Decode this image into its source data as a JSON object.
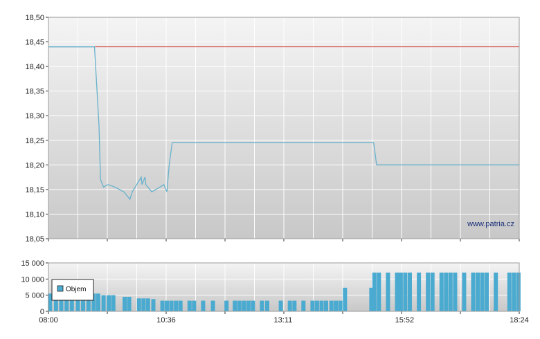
{
  "watermark": "www.patria.cz",
  "colors": {
    "price_line": "#66b2cc",
    "reference_line": "#d44040",
    "volume_bar": "#4aaad0",
    "grid": "#ffffff",
    "plot_bg_top": "#f4f4f4",
    "plot_bg_bottom": "#c8c8c8"
  },
  "chart_data": [
    {
      "type": "line",
      "title": "",
      "xlabel": "",
      "ylabel": "",
      "xlim": [
        "08:00",
        "18:24"
      ],
      "ylim": [
        18.05,
        18.5
      ],
      "y_ticks": [
        "18,05",
        "18,10",
        "18,15",
        "18,20",
        "18,25",
        "18,30",
        "18,35",
        "18,40",
        "18,45",
        "18,50"
      ],
      "grid": true,
      "reference_line": {
        "value": 18.44
      },
      "series": [
        {
          "points": [
            [
              "08:00",
              18.44
            ],
            [
              "09:01",
              18.44
            ],
            [
              "09:07",
              18.28
            ],
            [
              "09:09",
              18.17
            ],
            [
              "09:13",
              18.155
            ],
            [
              "09:19",
              18.16
            ],
            [
              "09:28",
              18.155
            ],
            [
              "09:40",
              18.145
            ],
            [
              "09:48",
              18.13
            ],
            [
              "09:51",
              18.145
            ],
            [
              "10:03",
              18.175
            ],
            [
              "10:04",
              18.16
            ],
            [
              "10:08",
              18.175
            ],
            [
              "10:09",
              18.16
            ],
            [
              "10:17",
              18.145
            ],
            [
              "10:33",
              18.16
            ],
            [
              "10:37",
              18.145
            ],
            [
              "10:40",
              18.2
            ],
            [
              "10:44",
              18.245
            ],
            [
              "15:11",
              18.245
            ],
            [
              "15:15",
              18.2
            ],
            [
              "18:24",
              18.2
            ]
          ]
        }
      ]
    },
    {
      "type": "bar",
      "title": "",
      "xlabel": "",
      "ylabel": "",
      "xlim": [
        "08:00",
        "18:24"
      ],
      "ylim": [
        0,
        15000
      ],
      "y_ticks": [
        "0",
        "5 000",
        "10 000",
        "15 000"
      ],
      "x_ticks": [
        "08:00",
        "10:36",
        "13:11",
        "15:52",
        "18:24"
      ],
      "legend": {
        "position": "top-left",
        "entries": [
          "Objem"
        ]
      },
      "series": [
        {
          "name": "Objem",
          "points": [
            [
              "08:02",
              5500
            ],
            [
              "08:10",
              5500
            ],
            [
              "08:17",
              5500
            ],
            [
              "08:24",
              5500
            ],
            [
              "08:31",
              5500
            ],
            [
              "08:39",
              5500
            ],
            [
              "08:46",
              5500
            ],
            [
              "08:53",
              5500
            ],
            [
              "09:00",
              5500
            ],
            [
              "09:06",
              5500
            ],
            [
              "09:13",
              5000
            ],
            [
              "09:20",
              5000
            ],
            [
              "09:26",
              5000
            ],
            [
              "09:41",
              4500
            ],
            [
              "09:47",
              4500
            ],
            [
              "10:00",
              4000
            ],
            [
              "10:06",
              4000
            ],
            [
              "10:12",
              4000
            ],
            [
              "10:19",
              3800
            ],
            [
              "10:31",
              3300
            ],
            [
              "10:37",
              3300
            ],
            [
              "10:43",
              3300
            ],
            [
              "10:49",
              3300
            ],
            [
              "10:55",
              3300
            ],
            [
              "11:07",
              3300
            ],
            [
              "11:13",
              3300
            ],
            [
              "11:25",
              3300
            ],
            [
              "11:38",
              3300
            ],
            [
              "11:56",
              3300
            ],
            [
              "12:07",
              3300
            ],
            [
              "12:13",
              3300
            ],
            [
              "12:19",
              3300
            ],
            [
              "12:25",
              3300
            ],
            [
              "12:31",
              3300
            ],
            [
              "12:43",
              3300
            ],
            [
              "12:50",
              3300
            ],
            [
              "13:08",
              3300
            ],
            [
              "13:20",
              3300
            ],
            [
              "13:26",
              3300
            ],
            [
              "13:38",
              3300
            ],
            [
              "13:50",
              3300
            ],
            [
              "13:56",
              3300
            ],
            [
              "14:02",
              3300
            ],
            [
              "14:08",
              3300
            ],
            [
              "14:15",
              3300
            ],
            [
              "14:21",
              3300
            ],
            [
              "14:27",
              3300
            ],
            [
              "14:33",
              7300
            ],
            [
              "15:08",
              7300
            ],
            [
              "15:12",
              12000
            ],
            [
              "15:18",
              12000
            ],
            [
              "15:30",
              12000
            ],
            [
              "15:42",
              12000
            ],
            [
              "15:47",
              12000
            ],
            [
              "15:53",
              12000
            ],
            [
              "15:59",
              12000
            ],
            [
              "16:11",
              12000
            ],
            [
              "16:23",
              12000
            ],
            [
              "16:29",
              12000
            ],
            [
              "16:41",
              12000
            ],
            [
              "16:47",
              12000
            ],
            [
              "16:53",
              12000
            ],
            [
              "16:59",
              12000
            ],
            [
              "17:11",
              12000
            ],
            [
              "17:23",
              12000
            ],
            [
              "17:29",
              12000
            ],
            [
              "17:35",
              12000
            ],
            [
              "17:41",
              12000
            ],
            [
              "17:53",
              12000
            ],
            [
              "18:11",
              12000
            ],
            [
              "18:17",
              12000
            ],
            [
              "18:23",
              12000
            ]
          ]
        }
      ]
    }
  ]
}
